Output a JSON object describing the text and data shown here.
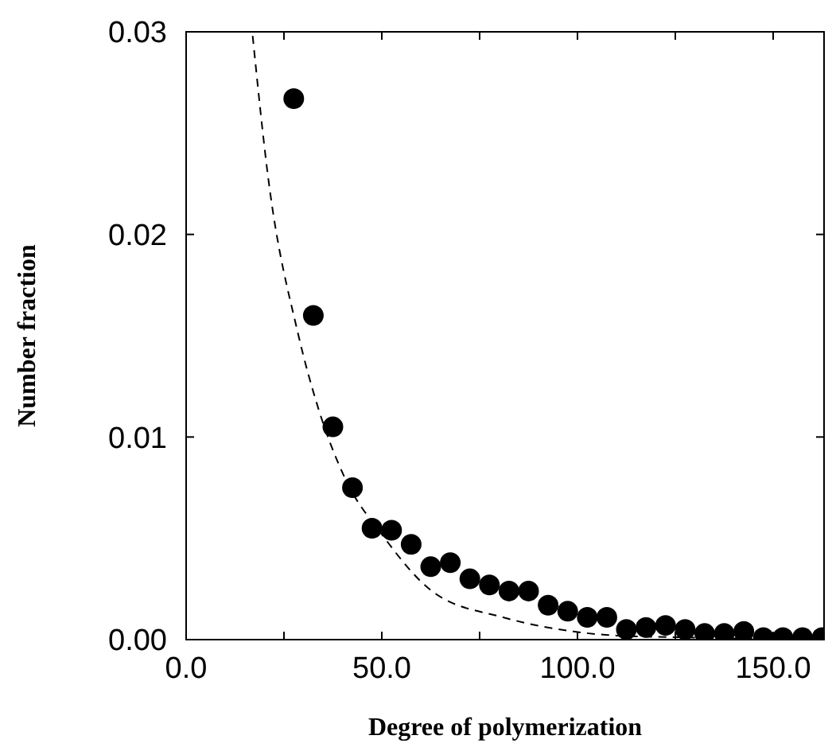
{
  "chart_data": {
    "type": "scatter",
    "xlabel": "Degree of polymerization",
    "ylabel": "Number fraction",
    "xlim": [
      0,
      163
    ],
    "ylim": [
      0,
      0.03
    ],
    "xticks": [
      {
        "value": 0,
        "label": "0.0"
      },
      {
        "value": 25,
        "label": null
      },
      {
        "value": 50,
        "label": "50.0"
      },
      {
        "value": 75,
        "label": null
      },
      {
        "value": 100,
        "label": "100.0"
      },
      {
        "value": 125,
        "label": null
      },
      {
        "value": 150,
        "label": "150.0"
      }
    ],
    "yticks": [
      {
        "value": 0,
        "label": "0.00"
      },
      {
        "value": 0.01,
        "label": "0.01"
      },
      {
        "value": 0.02,
        "label": "0.02"
      },
      {
        "value": 0.03,
        "label": "0.03"
      }
    ],
    "grid": false,
    "series": [
      {
        "color": "#000000",
        "marker": "circle",
        "x": [
          27.5,
          32.5,
          37.5,
          42.5,
          47.5,
          52.5,
          57.5,
          62.5,
          67.5,
          72.5,
          77.5,
          82.5,
          87.5,
          92.5,
          97.5,
          102.5,
          107.5,
          112.5,
          117.5,
          122.5,
          127.5,
          132.5,
          137.5,
          142.5,
          147.5,
          152.5,
          157.5,
          162.5
        ],
        "values": [
          0.0267,
          0.016,
          0.0105,
          0.0075,
          0.0055,
          0.0054,
          0.0047,
          0.0036,
          0.0038,
          0.003,
          0.0027,
          0.0024,
          0.0024,
          0.0017,
          0.0014,
          0.0011,
          0.0011,
          0.0005,
          0.0006,
          0.0007,
          0.0005,
          0.0003,
          0.0003,
          0.0004,
          0.0001,
          0.0001,
          0.0001,
          0.0001
        ]
      },
      {
        "type": "line",
        "color": "#000000",
        "line_style": "dashed",
        "x": [
          17,
          20.9,
          28.6,
          33.8,
          40.5,
          50,
          63.5,
          81,
          99,
          110,
          130,
          163
        ],
        "values": [
          0.0298,
          0.0229,
          0.0151,
          0.0114,
          0.008,
          0.0052,
          0.0023,
          0.0011,
          0.0004,
          0.0002,
          0.0001,
          0
        ]
      }
    ]
  }
}
